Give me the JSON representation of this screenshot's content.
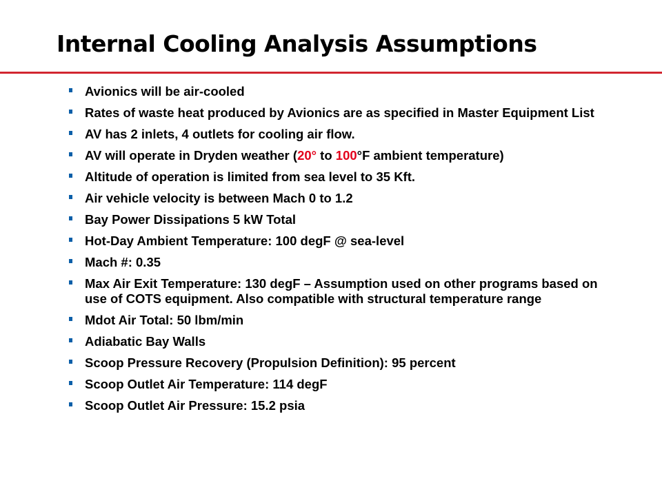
{
  "slide": {
    "title": "Internal Cooling Analysis Assumptions",
    "accent_rule_color": "#d22630",
    "bullet_marker_color": "#0b5fa8",
    "highlight_color": "#e3001b",
    "bullets": [
      "Avionics will be air-cooled",
      "Rates of waste heat produced by Avionics are as specified in Master Equipment List",
      "AV has 2 inlets, 4 outlets for cooling air flow.",
      {
        "prefix": "AV will operate in Dryden weather (",
        "low_temp": "20°",
        "middle": " to ",
        "high_temp": "100",
        "suffix": "°F ambient temperature)"
      },
      "Altitude of operation is limited from sea level to 35 Kft.",
      "Air vehicle velocity is between Mach 0 to 1.2",
      "Bay Power Dissipations 5 kW Total",
      "Hot-Day Ambient Temperature: 100 degF @ sea-level",
      "Mach #: 0.35",
      "Max Air Exit Temperature: 130 degF – Assumption used on other programs based on use of COTS equipment.  Also compatible with structural temperature range",
      "Mdot Air Total: 50 lbm/min",
      "Adiabatic Bay Walls",
      "Scoop Pressure Recovery (Propulsion Definition): 95 percent",
      "Scoop Outlet Air Temperature: 114 degF",
      "Scoop Outlet Air Pressure: 15.2 psia"
    ]
  }
}
